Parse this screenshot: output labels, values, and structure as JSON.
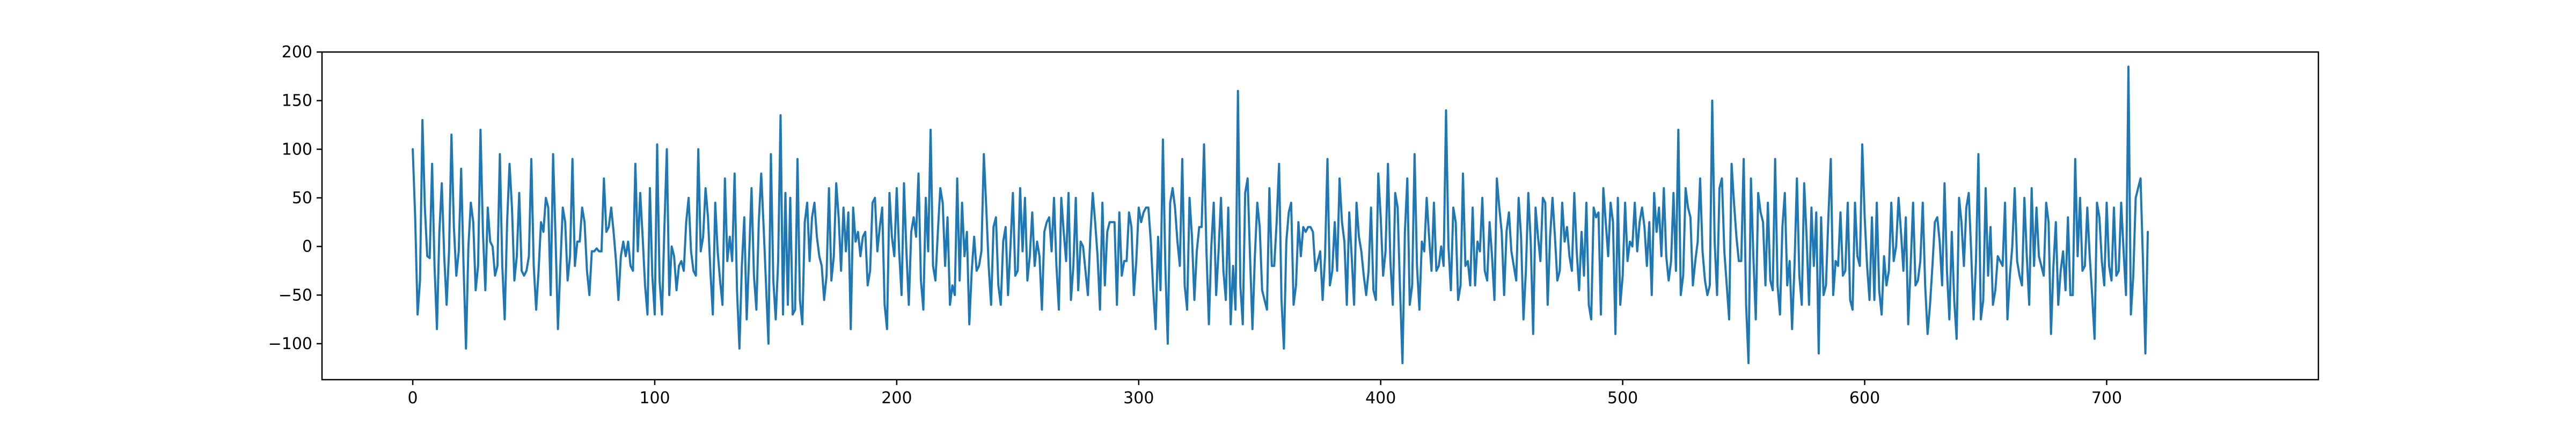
{
  "chart_data": {
    "type": "line",
    "title": "",
    "xlabel": "",
    "ylabel": "",
    "xlim": [
      -37.5,
      787.5
    ],
    "ylim": [
      -137,
      200
    ],
    "grid": false,
    "x_ticks": [
      0,
      100,
      200,
      300,
      400,
      500,
      600,
      700
    ],
    "y_ticks": [
      -100,
      -50,
      0,
      50,
      100,
      150,
      200
    ],
    "x_tick_labels": [
      "0",
      "100",
      "200",
      "300",
      "400",
      "500",
      "600",
      "700"
    ],
    "y_tick_labels": [
      "−100",
      "−50",
      "0",
      "50",
      "100",
      "150",
      "200"
    ],
    "series": [
      {
        "color": "#1f77b4",
        "x_start": 0,
        "x_step": 1,
        "values": [
          100,
          30,
          -70,
          -35,
          130,
          40,
          -10,
          -12,
          85,
          -20,
          -85,
          15,
          65,
          -10,
          -60,
          -5,
          115,
          20,
          -30,
          -5,
          80,
          -20,
          -105,
          0,
          45,
          25,
          -45,
          -20,
          120,
          15,
          -45,
          40,
          5,
          0,
          -30,
          -20,
          95,
          -20,
          -75,
          25,
          85,
          40,
          -35,
          -10,
          55,
          -25,
          -30,
          -25,
          -10,
          90,
          -20,
          -65,
          -25,
          25,
          15,
          50,
          40,
          -50,
          95,
          10,
          -85,
          -20,
          40,
          25,
          -35,
          -10,
          90,
          -20,
          5,
          5,
          40,
          25,
          -25,
          -50,
          -5,
          -5,
          -2,
          -5,
          -5,
          70,
          15,
          20,
          40,
          15,
          -15,
          -55,
          -10,
          5,
          -10,
          5,
          -20,
          -25,
          85,
          -5,
          55,
          10,
          -40,
          -70,
          60,
          -30,
          -70,
          105,
          -35,
          -70,
          20,
          100,
          -50,
          0,
          -10,
          -45,
          -20,
          -15,
          -25,
          25,
          50,
          -5,
          -25,
          -30,
          100,
          -5,
          10,
          60,
          30,
          -25,
          -70,
          45,
          -5,
          -35,
          -60,
          70,
          -15,
          10,
          -15,
          75,
          -45,
          -105,
          -20,
          30,
          -75,
          -10,
          60,
          -30,
          -65,
          25,
          75,
          20,
          -40,
          -100,
          95,
          -35,
          -75,
          -15,
          135,
          -70,
          55,
          -60,
          50,
          -70,
          -65,
          90,
          -55,
          -80,
          25,
          45,
          -15,
          30,
          45,
          10,
          -10,
          -20,
          -55,
          -30,
          60,
          -35,
          -10,
          65,
          30,
          -25,
          40,
          -5,
          35,
          -85,
          40,
          5,
          15,
          -10,
          10,
          15,
          -40,
          -25,
          45,
          50,
          -5,
          20,
          40,
          -60,
          -85,
          55,
          10,
          -10,
          60,
          -5,
          -50,
          65,
          -5,
          -60,
          15,
          30,
          10,
          75,
          -35,
          -65,
          50,
          -5,
          120,
          -20,
          -35,
          15,
          60,
          45,
          -20,
          30,
          -60,
          -40,
          -50,
          70,
          -35,
          45,
          -10,
          15,
          -80,
          -25,
          10,
          -25,
          -20,
          -5,
          95,
          40,
          -20,
          -60,
          20,
          30,
          -40,
          -60,
          5,
          20,
          -50,
          0,
          55,
          -30,
          -25,
          60,
          -5,
          50,
          -35,
          -10,
          35,
          -20,
          5,
          -10,
          -65,
          15,
          25,
          30,
          -5,
          50,
          -20,
          -65,
          50,
          15,
          -15,
          55,
          -55,
          -20,
          50,
          -45,
          5,
          0,
          -25,
          -50,
          10,
          55,
          25,
          -10,
          -65,
          45,
          -40,
          15,
          25,
          25,
          25,
          -60,
          35,
          -30,
          -15,
          -15,
          35,
          20,
          -50,
          -15,
          40,
          25,
          35,
          40,
          40,
          5,
          -45,
          -85,
          10,
          -45,
          110,
          -20,
          -100,
          45,
          60,
          40,
          5,
          -20,
          90,
          -40,
          -65,
          50,
          10,
          -55,
          -5,
          20,
          20,
          105,
          -5,
          -80,
          0,
          45,
          -50,
          -5,
          50,
          -25,
          -55,
          40,
          -80,
          -20,
          -65,
          160,
          -40,
          -80,
          55,
          70,
          -10,
          -85,
          -10,
          45,
          20,
          -45,
          -55,
          -65,
          60,
          -20,
          -20,
          25,
          85,
          -55,
          -105,
          5,
          35,
          45,
          -60,
          -40,
          25,
          -10,
          20,
          15,
          20,
          20,
          15,
          -25,
          -15,
          -5,
          -55,
          -10,
          90,
          -40,
          -25,
          25,
          -25,
          70,
          25,
          5,
          -60,
          35,
          -10,
          -60,
          45,
          10,
          -5,
          -30,
          -50,
          -25,
          40,
          -45,
          -55,
          75,
          30,
          -30,
          -5,
          85,
          -15,
          -60,
          55,
          40,
          -45,
          -120,
          15,
          70,
          -60,
          -40,
          95,
          -20,
          -65,
          5,
          -5,
          50,
          10,
          -25,
          45,
          -25,
          -20,
          0,
          -20,
          140,
          0,
          -45,
          40,
          25,
          -55,
          -40,
          75,
          -20,
          -15,
          -40,
          40,
          -40,
          5,
          -5,
          50,
          -25,
          -35,
          25,
          -10,
          -55,
          70,
          40,
          15,
          -50,
          15,
          35,
          -5,
          -20,
          -35,
          50,
          10,
          -75,
          -25,
          55,
          5,
          -90,
          40,
          10,
          -15,
          50,
          45,
          -60,
          10,
          50,
          10,
          -35,
          -25,
          45,
          5,
          20,
          -10,
          -25,
          55,
          -5,
          -45,
          15,
          -30,
          45,
          -60,
          -75,
          40,
          30,
          35,
          -70,
          60,
          25,
          -10,
          45,
          25,
          -90,
          50,
          -60,
          -30,
          45,
          -15,
          5,
          0,
          45,
          -5,
          25,
          40,
          20,
          -20,
          25,
          -50,
          55,
          15,
          40,
          -10,
          60,
          -10,
          -35,
          -15,
          55,
          -25,
          120,
          -50,
          -30,
          60,
          40,
          30,
          -40,
          -15,
          5,
          70,
          -5,
          -35,
          -50,
          -40,
          150,
          5,
          -50,
          60,
          70,
          -5,
          -40,
          -75,
          85,
          45,
          10,
          -15,
          -15,
          90,
          -60,
          -120,
          70,
          -10,
          -75,
          55,
          35,
          25,
          -40,
          45,
          -35,
          -45,
          90,
          -40,
          -70,
          20,
          55,
          -40,
          -15,
          -85,
          -20,
          70,
          -30,
          -60,
          65,
          10,
          -60,
          40,
          -20,
          35,
          -110,
          30,
          -50,
          -40,
          30,
          90,
          -50,
          -15,
          -20,
          35,
          -30,
          -25,
          45,
          -55,
          -65,
          45,
          -10,
          -20,
          105,
          30,
          -20,
          -55,
          30,
          -55,
          45,
          -45,
          -70,
          -10,
          -40,
          -25,
          45,
          -15,
          0,
          50,
          15,
          -25,
          30,
          -80,
          -20,
          45,
          -40,
          -35,
          -15,
          45,
          -40,
          -90,
          -60,
          -20,
          25,
          30,
          5,
          -40,
          65,
          -25,
          -75,
          15,
          -55,
          -95,
          50,
          25,
          -20,
          40,
          55,
          -5,
          -75,
          -15,
          95,
          -75,
          -55,
          60,
          -30,
          20,
          -60,
          -45,
          -10,
          -15,
          -20,
          45,
          -75,
          -30,
          0,
          60,
          -15,
          -30,
          -40,
          50,
          -10,
          -60,
          60,
          -20,
          40,
          -10,
          -20,
          -30,
          45,
          25,
          -90,
          -20,
          25,
          -60,
          -25,
          -5,
          -45,
          30,
          -50,
          -50,
          90,
          -10,
          50,
          -25,
          -20,
          40,
          -10,
          -50,
          -95,
          45,
          30,
          -15,
          -40,
          45,
          -20,
          -35,
          40,
          -30,
          -25,
          45,
          -5,
          -50,
          185,
          -70,
          -30,
          50,
          60,
          70,
          -15,
          -110,
          15
        ]
      }
    ]
  }
}
